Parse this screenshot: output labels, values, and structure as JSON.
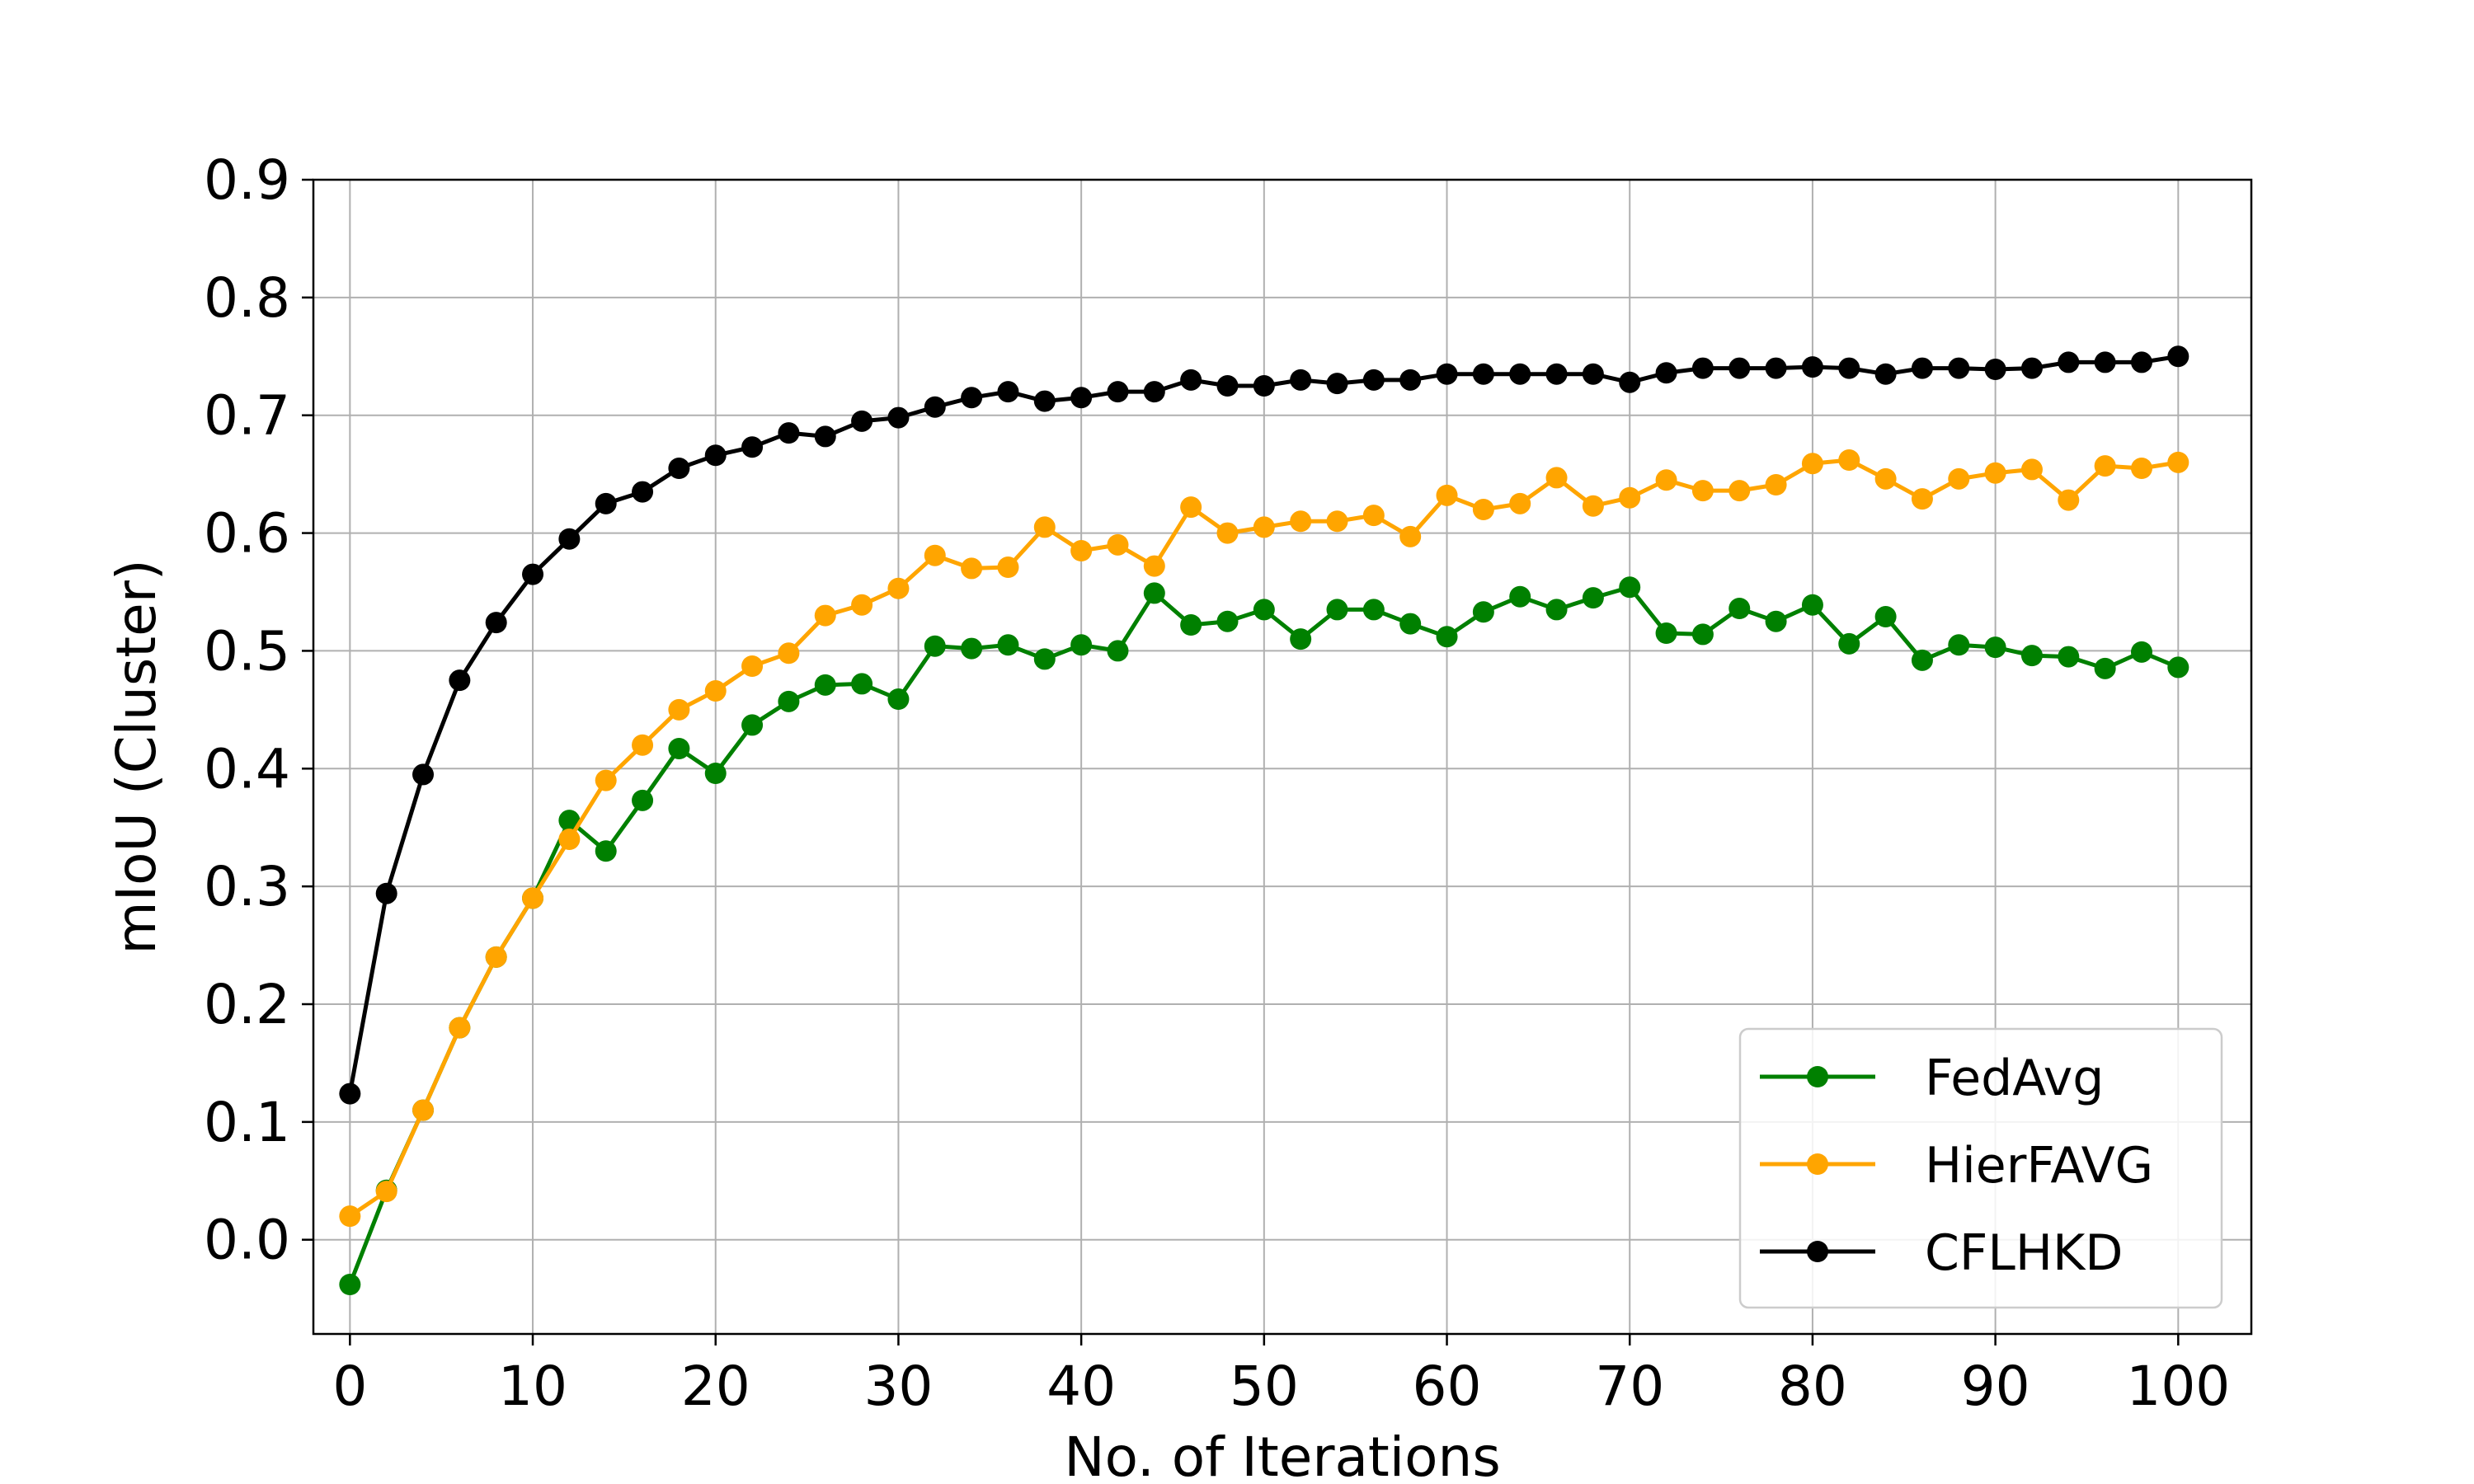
{
  "chart_data": {
    "type": "line",
    "title": "",
    "xlabel": "No. of Iterations",
    "ylabel": "mIoU (Cluster)",
    "xlim": [
      -2,
      104
    ],
    "ylim": [
      -0.08,
      0.9
    ],
    "xticks": [
      0,
      10,
      20,
      30,
      40,
      50,
      60,
      70,
      80,
      90,
      100
    ],
    "yticks": [
      0.0,
      0.1,
      0.2,
      0.3,
      0.4,
      0.5,
      0.6,
      0.7,
      0.8,
      0.9
    ],
    "ytick_labels": [
      "0.0",
      "0.1",
      "0.2",
      "0.3",
      "0.4",
      "0.5",
      "0.6",
      "0.7",
      "0.8",
      "0.9"
    ],
    "grid": true,
    "legend_position": "lower-right",
    "x": [
      0,
      2,
      4,
      6,
      8,
      10,
      12,
      14,
      16,
      18,
      20,
      22,
      24,
      26,
      28,
      30,
      32,
      34,
      36,
      38,
      40,
      42,
      44,
      46,
      48,
      50,
      52,
      54,
      56,
      58,
      60,
      62,
      64,
      66,
      68,
      70,
      72,
      74,
      76,
      78,
      80,
      82,
      84,
      86,
      88,
      90,
      92,
      94,
      96,
      98,
      100
    ],
    "series": [
      {
        "name": "FedAvg",
        "color": "#008000",
        "values": [
          -0.038,
          0.042,
          0.11,
          0.18,
          0.24,
          0.29,
          0.356,
          0.33,
          0.373,
          0.417,
          0.396,
          0.437,
          0.457,
          0.471,
          0.472,
          0.459,
          0.504,
          0.502,
          0.505,
          0.493,
          0.505,
          0.5,
          0.549,
          0.522,
          0.525,
          0.535,
          0.51,
          0.535,
          0.535,
          0.523,
          0.512,
          0.533,
          0.546,
          0.535,
          0.545,
          0.554,
          0.515,
          0.514,
          0.536,
          0.525,
          0.539,
          0.506,
          0.529,
          0.492,
          0.505,
          0.503,
          0.496,
          0.495,
          0.485,
          0.499,
          0.486
        ]
      },
      {
        "name": "HierFAVG",
        "color": "#FFA500",
        "values": [
          0.02,
          0.041,
          0.11,
          0.18,
          0.24,
          0.29,
          0.34,
          0.39,
          0.42,
          0.45,
          0.466,
          0.487,
          0.498,
          0.53,
          0.539,
          0.553,
          0.581,
          0.57,
          0.571,
          0.605,
          0.585,
          0.59,
          0.572,
          0.622,
          0.6,
          0.605,
          0.61,
          0.61,
          0.615,
          0.597,
          0.632,
          0.62,
          0.625,
          0.647,
          0.623,
          0.63,
          0.645,
          0.636,
          0.636,
          0.641,
          0.659,
          0.662,
          0.646,
          0.629,
          0.646,
          0.651,
          0.654,
          0.628,
          0.657,
          0.655,
          0.66
        ]
      },
      {
        "name": "CFLHKD",
        "color": "#000000",
        "values": [
          0.124,
          0.294,
          0.395,
          0.475,
          0.524,
          0.565,
          0.595,
          0.625,
          0.635,
          0.655,
          0.666,
          0.673,
          0.685,
          0.682,
          0.695,
          0.698,
          0.707,
          0.715,
          0.72,
          0.712,
          0.715,
          0.72,
          0.72,
          0.73,
          0.725,
          0.725,
          0.73,
          0.727,
          0.73,
          0.73,
          0.735,
          0.735,
          0.735,
          0.735,
          0.735,
          0.728,
          0.736,
          0.74,
          0.74,
          0.74,
          0.741,
          0.74,
          0.735,
          0.74,
          0.74,
          0.739,
          0.74,
          0.745,
          0.745,
          0.745,
          0.75
        ]
      }
    ]
  }
}
